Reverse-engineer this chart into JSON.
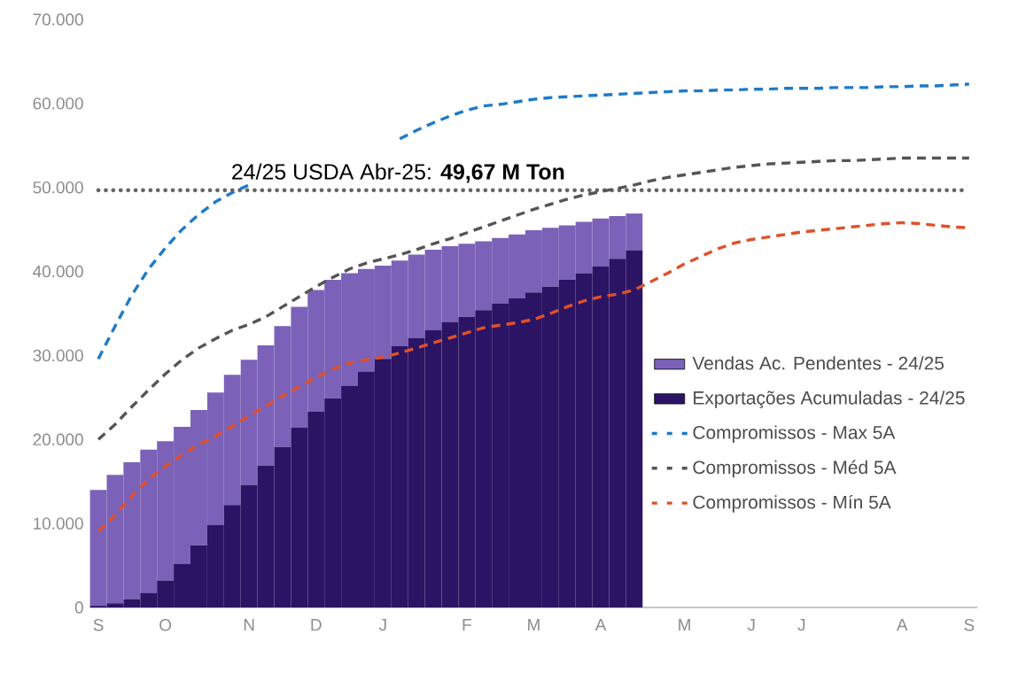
{
  "chart_data": {
    "type": "bar",
    "stacked": true,
    "legend": "right",
    "categories": [
      "S",
      null,
      null,
      null,
      "O",
      null,
      null,
      null,
      null,
      "N",
      null,
      null,
      null,
      "D",
      null,
      null,
      null,
      "J",
      null,
      null,
      null,
      null,
      "F",
      null,
      null,
      null,
      "M",
      null,
      null,
      null,
      "A",
      null,
      null,
      null,
      null,
      "M",
      null,
      null,
      null,
      "J",
      null,
      null,
      "J",
      null,
      null,
      null,
      null,
      null,
      "A",
      null,
      null,
      null,
      "S"
    ],
    "ylim": [
      0,
      70000
    ],
    "yticks": [
      {
        "value": 0,
        "label": "0"
      },
      {
        "value": 10000,
        "label": "10.000"
      },
      {
        "value": 20000,
        "label": "20.000"
      },
      {
        "value": 30000,
        "label": "30.000"
      },
      {
        "value": 40000,
        "label": "40.000"
      },
      {
        "value": 50000,
        "label": "50.000"
      },
      {
        "value": 60000,
        "label": "60.000"
      },
      {
        "value": 70000,
        "label": "70.000"
      }
    ],
    "series": [
      {
        "name": "Exportações Acumuladas - 24/25",
        "type": "bar",
        "color": "#2b1464",
        "values": [
          200,
          500,
          1000,
          1700,
          3200,
          5200,
          7400,
          9800,
          12200,
          14600,
          16900,
          19100,
          21400,
          23300,
          24900,
          26400,
          28100,
          29600,
          31100,
          32100,
          33000,
          34000,
          34600,
          35400,
          36200,
          36800,
          37500,
          38200,
          39000,
          39800,
          40600,
          41500,
          42500,
          null,
          null,
          null,
          null,
          null,
          null,
          null,
          null,
          null,
          null,
          null,
          null,
          null,
          null,
          null,
          null,
          null,
          null,
          null,
          null
        ]
      },
      {
        "name": "Vendas Ac. Pendentes - 24/25",
        "type": "bar",
        "color": "#7b62b8",
        "values": [
          13800,
          15300,
          16300,
          17100,
          16600,
          16300,
          16100,
          15800,
          15500,
          14900,
          14300,
          14400,
          14400,
          14500,
          14100,
          13400,
          12200,
          11100,
          10200,
          9900,
          9600,
          9000,
          8700,
          8200,
          7800,
          7600,
          7400,
          7000,
          6500,
          6100,
          5700,
          5100,
          4400,
          null,
          null,
          null,
          null,
          null,
          null,
          null,
          null,
          null,
          null,
          null,
          null,
          null,
          null,
          null,
          null,
          null,
          null,
          null,
          null
        ]
      },
      {
        "name": "Compromissos - Max 5A",
        "type": "line",
        "line_style": "dashed",
        "color": "#1f7ac7",
        "values": [
          29600,
          33500,
          37200,
          40300,
          42800,
          45000,
          46800,
          48300,
          49400,
          50300,
          null,
          null,
          null,
          null,
          null,
          null,
          null,
          null,
          55800,
          56800,
          57700,
          58500,
          59200,
          59700,
          59900,
          60200,
          60500,
          60700,
          60800,
          60900,
          61000,
          61100,
          61200,
          61300,
          61400,
          61500,
          61500,
          61600,
          61600,
          61700,
          61700,
          61800,
          61800,
          61800,
          61900,
          61900,
          61900,
          62000,
          62000,
          62100,
          62100,
          62200,
          62300
        ]
      },
      {
        "name": "Compromissos - Méd 5A",
        "type": "line",
        "line_style": "dashed",
        "color": "#555555",
        "values": [
          20000,
          21800,
          23900,
          25900,
          27800,
          29500,
          30900,
          32000,
          33000,
          33700,
          34600,
          35800,
          37000,
          38200,
          39300,
          40300,
          41000,
          41500,
          42000,
          42600,
          43300,
          43900,
          44600,
          45300,
          46000,
          46700,
          47400,
          48000,
          48600,
          49100,
          49500,
          49900,
          50300,
          50800,
          51200,
          51500,
          51800,
          52100,
          52400,
          52600,
          52800,
          52900,
          53000,
          53100,
          53200,
          53200,
          53300,
          53400,
          53500,
          53500,
          53500,
          53500,
          53500
        ]
      },
      {
        "name": "Compromissos - Mín 5A",
        "type": "line",
        "line_style": "dashed",
        "color": "#e0502a",
        "values": [
          9100,
          11000,
          13300,
          15300,
          16800,
          18200,
          19400,
          20400,
          21600,
          22800,
          24000,
          25200,
          26300,
          27400,
          28400,
          29100,
          29500,
          29800,
          30300,
          30900,
          31500,
          32100,
          32700,
          33300,
          33600,
          33900,
          34300,
          35000,
          35800,
          36500,
          37000,
          37300,
          37800,
          38800,
          39800,
          40900,
          41800,
          42700,
          43400,
          43800,
          44100,
          44400,
          44700,
          44900,
          45100,
          45300,
          45500,
          45700,
          45800,
          45700,
          45500,
          45300,
          45200
        ]
      }
    ],
    "ref_lines": [
      {
        "axis": "y",
        "value": 49670,
        "label": "24/25 USDA Abr-25: **49,67 M Ton**",
        "color": "#666666",
        "line_style": "dotted"
      }
    ]
  }
}
